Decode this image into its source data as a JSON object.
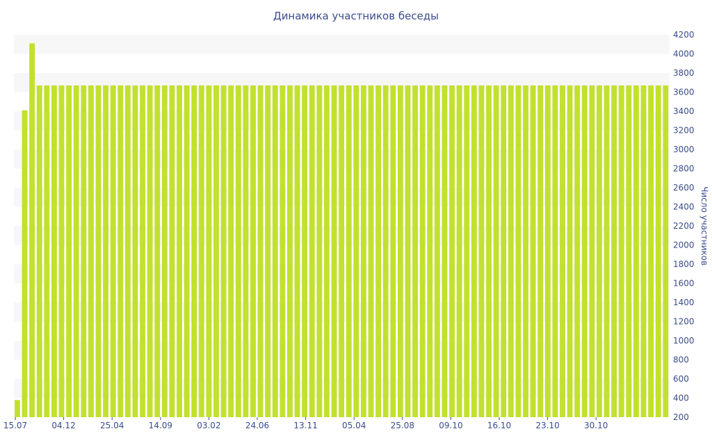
{
  "chart_data": {
    "type": "bar",
    "title": "Динамика участников беседы",
    "ylabel": "Число участников",
    "xlabel": "",
    "ylim": [
      200,
      4200
    ],
    "yticks": [
      200,
      400,
      600,
      800,
      1000,
      1200,
      1400,
      1600,
      1800,
      2000,
      2200,
      2400,
      2600,
      2800,
      3000,
      3200,
      3400,
      3600,
      3800,
      4000,
      4200
    ],
    "y_axis_side": "right",
    "x_tick_labels": [
      "15.07",
      "04.12",
      "25.04",
      "14.09",
      "03.02",
      "24.06",
      "13.11",
      "05.04",
      "25.08",
      "09.10",
      "16.10",
      "23.10",
      "30.10"
    ],
    "bar_color": "#c2e02e",
    "band_color": "#f7f7f7",
    "series": [
      {
        "values": [
          380,
          3410,
          4110,
          3670,
          3670,
          3670,
          3670,
          3670,
          3670,
          3670,
          3670,
          3670,
          3670,
          3670,
          3670,
          3670,
          3670,
          3670,
          3670,
          3670,
          3670,
          3670,
          3670,
          3670,
          3670,
          3670,
          3670,
          3670,
          3670,
          3670,
          3670,
          3670,
          3670,
          3670,
          3670,
          3670,
          3670,
          3670,
          3670,
          3670,
          3670,
          3670,
          3670,
          3670,
          3670,
          3670,
          3670,
          3670,
          3670,
          3670,
          3670,
          3670,
          3670,
          3670,
          3670,
          3670,
          3670,
          3670,
          3670,
          3670,
          3670,
          3670,
          3670,
          3670,
          3670,
          3670,
          3670,
          3670,
          3670,
          3670,
          3670,
          3670,
          3670,
          3670,
          3670,
          3670,
          3670,
          3670,
          3670,
          3670,
          3670,
          3670,
          3670,
          3670,
          3670,
          3670,
          3670,
          3670,
          3670
        ]
      }
    ]
  }
}
